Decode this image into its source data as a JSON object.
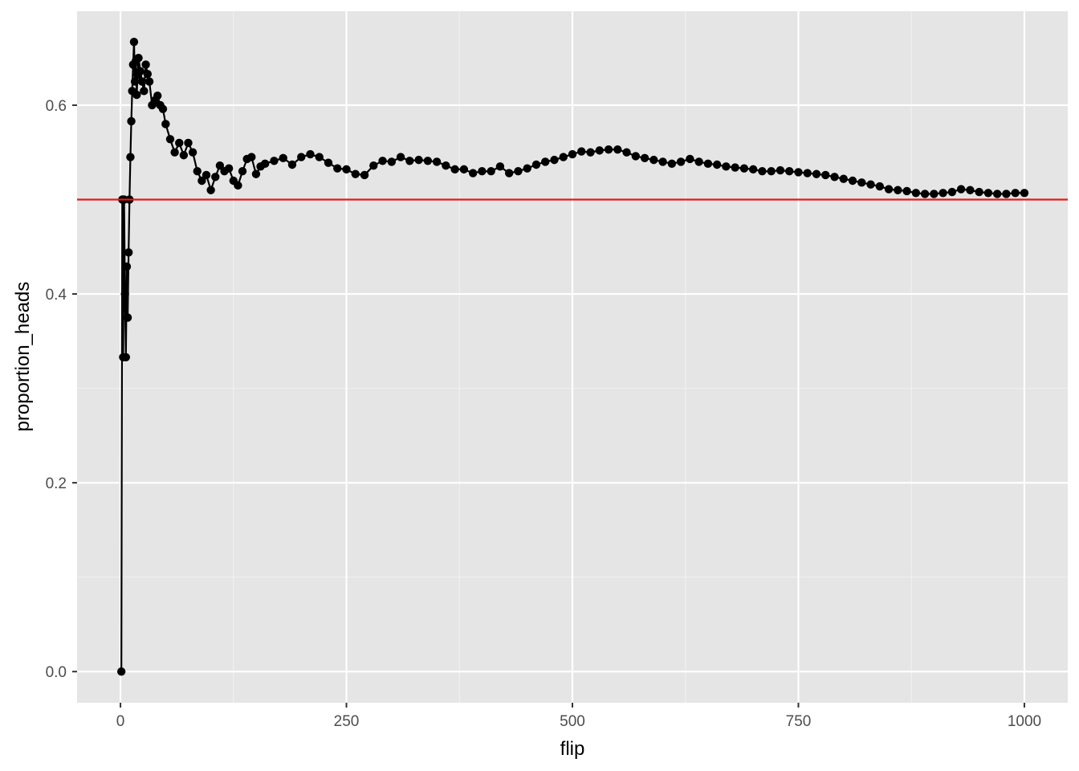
{
  "chart_data": {
    "type": "line",
    "title": "",
    "xlabel": "flip",
    "ylabel": "proportion_heads",
    "xlim": [
      -48,
      1048
    ],
    "ylim": [
      -0.033,
      0.6995
    ],
    "x_ticks": [
      0,
      250,
      500,
      750,
      1000
    ],
    "x_tick_labels": [
      "0",
      "250",
      "500",
      "750",
      "1000"
    ],
    "x_minor_breaks": [
      125,
      375,
      625,
      875
    ],
    "y_ticks": [
      0.0,
      0.2,
      0.4,
      0.6
    ],
    "y_tick_labels": [
      "0.0",
      "0.2",
      "0.4",
      "0.6"
    ],
    "y_minor_breaks": [
      0.1,
      0.3,
      0.5
    ],
    "grid": true,
    "reference_line": {
      "y": 0.5,
      "color": "#e41a1c"
    },
    "series": [
      {
        "color": "#000000",
        "markers": true,
        "x": [
          1,
          2,
          3,
          4,
          5,
          6,
          7,
          8,
          9,
          10,
          11,
          12,
          13,
          14,
          15,
          16,
          17,
          18,
          19,
          20,
          22,
          24,
          26,
          28,
          30,
          32,
          35,
          38,
          41,
          44,
          47,
          50,
          55,
          60,
          65,
          70,
          75,
          80,
          85,
          90,
          95,
          100,
          105,
          110,
          115,
          120,
          125,
          130,
          135,
          140,
          145,
          150,
          155,
          160,
          170,
          180,
          190,
          200,
          210,
          220,
          230,
          240,
          250,
          260,
          270,
          280,
          290,
          300,
          310,
          320,
          330,
          340,
          350,
          360,
          370,
          380,
          390,
          400,
          410,
          420,
          430,
          440,
          450,
          460,
          470,
          480,
          490,
          500,
          510,
          520,
          530,
          540,
          550,
          560,
          570,
          580,
          590,
          600,
          610,
          620,
          630,
          640,
          650,
          660,
          670,
          680,
          690,
          700,
          710,
          720,
          730,
          740,
          750,
          760,
          770,
          780,
          790,
          800,
          810,
          820,
          830,
          840,
          850,
          860,
          870,
          880,
          890,
          900,
          910,
          920,
          930,
          940,
          950,
          960,
          970,
          980,
          990,
          1000
        ],
        "y": [
          0.0,
          0.5,
          0.333,
          0.5,
          0.4,
          0.333,
          0.429,
          0.375,
          0.444,
          0.5,
          0.545,
          0.583,
          0.615,
          0.643,
          0.667,
          0.625,
          0.647,
          0.611,
          0.632,
          0.65,
          0.636,
          0.625,
          0.615,
          0.643,
          0.633,
          0.625,
          0.6,
          0.605,
          0.61,
          0.6,
          0.596,
          0.58,
          0.564,
          0.55,
          0.56,
          0.547,
          0.56,
          0.55,
          0.53,
          0.52,
          0.526,
          0.51,
          0.524,
          0.536,
          0.53,
          0.533,
          0.52,
          0.515,
          0.53,
          0.543,
          0.545,
          0.527,
          0.535,
          0.538,
          0.541,
          0.544,
          0.537,
          0.545,
          0.548,
          0.545,
          0.539,
          0.533,
          0.532,
          0.527,
          0.526,
          0.536,
          0.541,
          0.54,
          0.545,
          0.541,
          0.542,
          0.541,
          0.54,
          0.536,
          0.532,
          0.532,
          0.528,
          0.53,
          0.53,
          0.535,
          0.528,
          0.53,
          0.533,
          0.537,
          0.54,
          0.542,
          0.545,
          0.548,
          0.551,
          0.55,
          0.552,
          0.553,
          0.553,
          0.55,
          0.546,
          0.544,
          0.542,
          0.54,
          0.538,
          0.54,
          0.543,
          0.54,
          0.538,
          0.537,
          0.535,
          0.534,
          0.533,
          0.532,
          0.53,
          0.53,
          0.531,
          0.53,
          0.529,
          0.528,
          0.527,
          0.526,
          0.524,
          0.522,
          0.52,
          0.518,
          0.516,
          0.514,
          0.511,
          0.51,
          0.509,
          0.507,
          0.506,
          0.506,
          0.507,
          0.508,
          0.511,
          0.51,
          0.508,
          0.507,
          0.506,
          0.506,
          0.507,
          0.507
        ]
      }
    ]
  }
}
